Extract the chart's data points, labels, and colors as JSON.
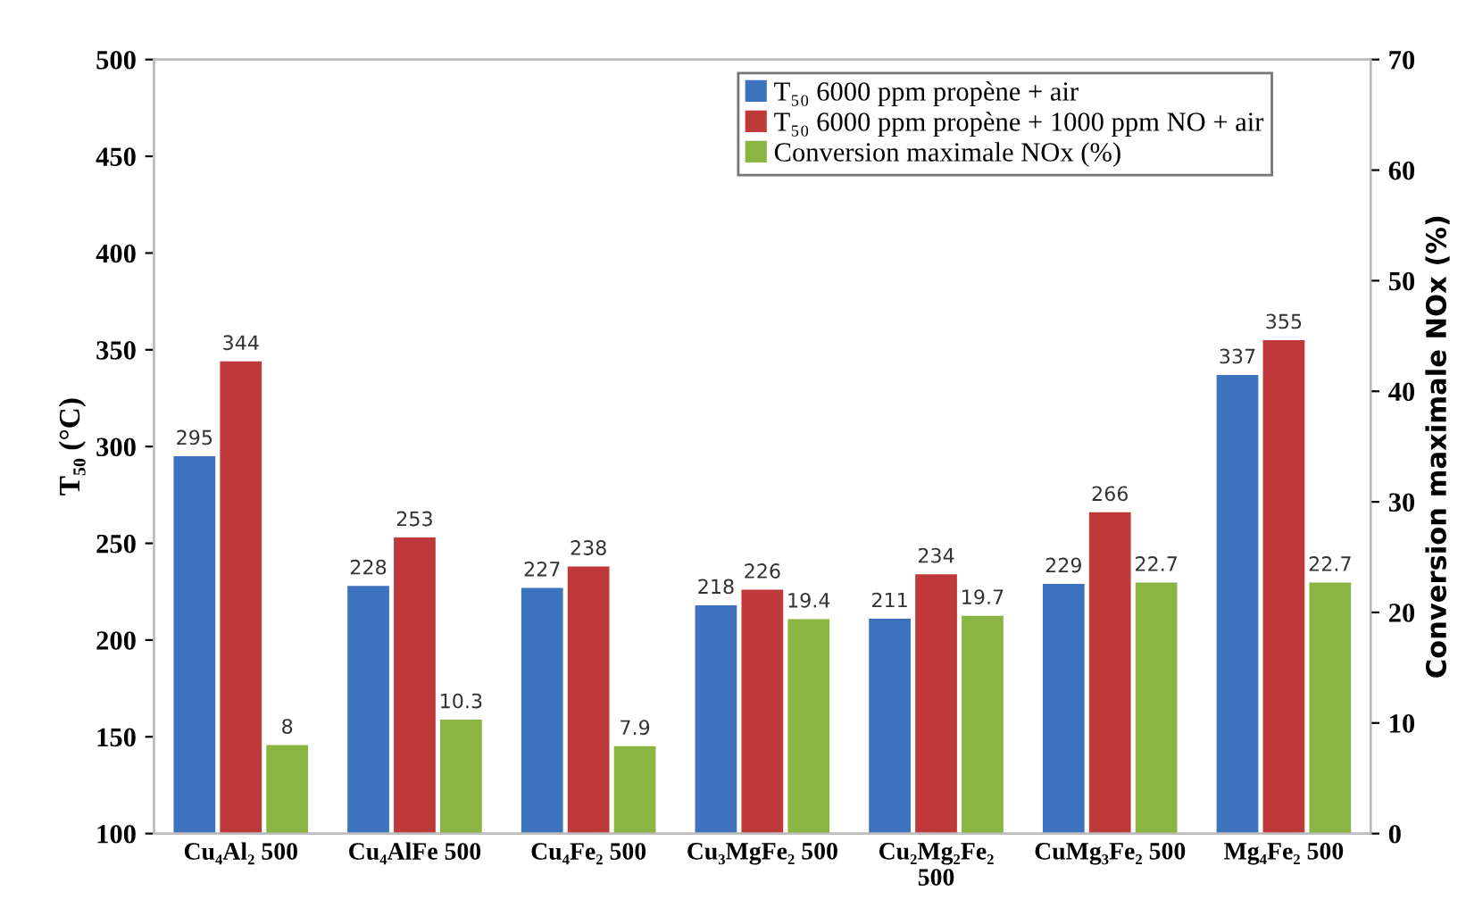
{
  "chart_data": {
    "type": "bar",
    "categories": [
      "Cu₄Al₂ 500",
      "Cu₄AlFe 500",
      "Cu₄Fe₂ 500",
      "Cu₃MgFe₂ 500",
      "Cu₂Mg₂Fe₂\n500",
      "CuMg₃Fe₂ 500",
      "Mg₄Fe₂ 500"
    ],
    "series": [
      {
        "name": "T₅₀ 6000 ppm propène + air",
        "color": "#3d72bf",
        "values": [
          295,
          228,
          227,
          218,
          211,
          229,
          337
        ]
      },
      {
        "name": "T₅₀ 6000 ppm propène + 1000 ppm NO + air",
        "color": "#c0393a",
        "values": [
          344,
          253,
          238,
          226,
          234,
          266,
          355
        ]
      },
      {
        "name": "Conversion maximale NOx (%)",
        "color": "#8bb543",
        "axis": "y2",
        "values": [
          8,
          10.3,
          7.9,
          19.4,
          19.7,
          22.7,
          22.7
        ]
      }
    ],
    "ylabel": "T₅₀ (°C)",
    "y2label": "Conversion maximale NOx (%)",
    "ylim": [
      100,
      500
    ],
    "yticks": [
      100,
      150,
      200,
      250,
      300,
      350,
      400,
      450,
      500
    ],
    "y2lim": [
      0,
      70
    ],
    "y2ticks": [
      0,
      10,
      20,
      30,
      40,
      50,
      60,
      70
    ],
    "data_labels": true,
    "legend": "top right",
    "grid": false
  }
}
